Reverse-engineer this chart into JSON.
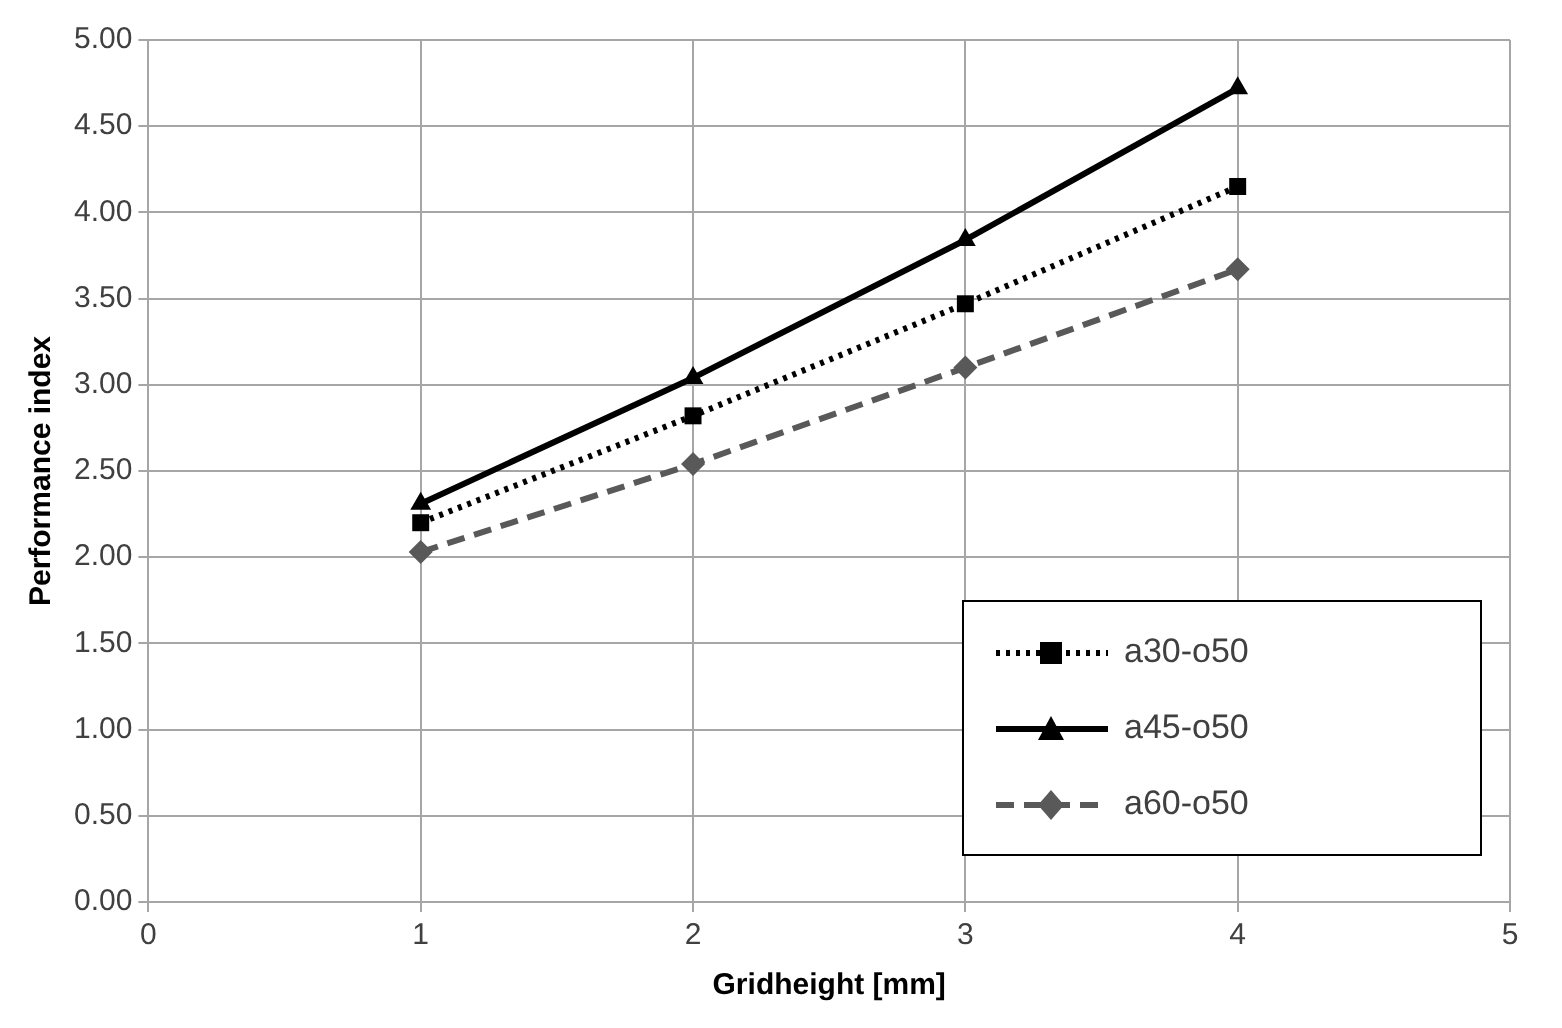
{
  "chart_data": {
    "type": "line",
    "xlabel": "Gridheight [mm]",
    "ylabel": "Performance index",
    "xlim": [
      0,
      5
    ],
    "xticks": [
      0,
      1,
      2,
      3,
      4,
      5
    ],
    "ylim": [
      0,
      5
    ],
    "yticks": [
      {
        "value": 0,
        "label": "0.00"
      },
      {
        "value": 0.5,
        "label": "0.50"
      },
      {
        "value": 1,
        "label": "1.00"
      },
      {
        "value": 1.5,
        "label": "1.50"
      },
      {
        "value": 2,
        "label": "2.00"
      },
      {
        "value": 2.5,
        "label": "2.50"
      },
      {
        "value": 3,
        "label": "3.00"
      },
      {
        "value": 3.5,
        "label": "3.50"
      },
      {
        "value": 4,
        "label": "4.00"
      },
      {
        "value": 4.5,
        "label": "4.50"
      },
      {
        "value": 5,
        "label": "5.00"
      }
    ],
    "grid": true,
    "legend": "bottom right",
    "x": [
      1,
      2,
      3,
      4
    ],
    "series": [
      {
        "name": "a30-o50",
        "color": "#000000",
        "marker": "square",
        "line_style": "dotted",
        "values": [
          2.2,
          2.82,
          3.47,
          4.15
        ]
      },
      {
        "name": "a45-o50",
        "color": "#000000",
        "marker": "triangle",
        "line_style": "solid",
        "values": [
          2.31,
          3.04,
          3.84,
          4.72
        ]
      },
      {
        "name": "a60-o50",
        "color": "#595959",
        "marker": "diamond",
        "line_style": "dashed",
        "values": [
          2.03,
          2.54,
          3.1,
          3.67
        ]
      }
    ]
  }
}
